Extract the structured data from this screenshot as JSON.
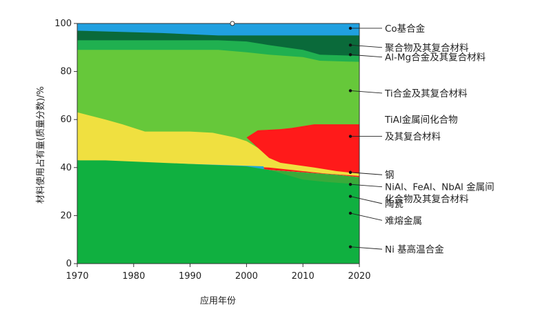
{
  "chart_data": {
    "type": "area",
    "xlabel": "应用年份",
    "ylabel": "材料使用占有量(质量分数)/%",
    "xlim": [
      1970,
      2020
    ],
    "ylim": [
      0,
      100
    ],
    "x_ticks": [
      1970,
      1980,
      1990,
      2000,
      2010,
      2020
    ],
    "y_ticks": [
      0,
      20,
      40,
      60,
      80,
      100
    ],
    "series": [
      {
        "name": "Ni 基高温合金",
        "color": "#10b040",
        "points": [
          [
            1970,
            43
          ],
          [
            1975,
            43
          ],
          [
            1980,
            42.5
          ],
          [
            1985,
            42
          ],
          [
            1990,
            41.5
          ],
          [
            1995,
            41
          ],
          [
            2000,
            40.5
          ],
          [
            2004,
            39
          ],
          [
            2007,
            37
          ],
          [
            2010,
            35
          ],
          [
            2014,
            34
          ],
          [
            2020,
            33
          ]
        ]
      },
      {
        "name": "难熔金属",
        "color": "#20a8d8",
        "points": [
          [
            1970,
            43
          ],
          [
            2003,
            40.5
          ],
          [
            2004,
            31
          ],
          [
            2012,
            21
          ],
          [
            2016,
            20
          ],
          [
            2020,
            19
          ]
        ]
      },
      {
        "name": "陶瓷",
        "color": "#30c040",
        "points": [
          [
            1970,
            43
          ],
          [
            2000,
            40.5
          ],
          [
            2004,
            37
          ],
          [
            2010,
            34
          ],
          [
            2016,
            33
          ],
          [
            2020,
            32.5
          ]
        ]
      },
      {
        "name": "NiAl、FeAl、NbAl 金属间化合物及其复合材料",
        "color": "#3aaa3a",
        "points": [
          [
            1970,
            43
          ],
          [
            2000,
            40.5
          ],
          [
            2004,
            39
          ],
          [
            2010,
            38
          ],
          [
            2016,
            37
          ],
          [
            2020,
            36
          ]
        ]
      },
      {
        "name": "钢",
        "color": "#ffffff",
        "points": [
          [
            1970,
            43
          ],
          [
            2000,
            40.5
          ],
          [
            2004,
            39
          ],
          [
            2010,
            38
          ],
          [
            2016,
            37
          ],
          [
            2020,
            36
          ]
        ]
      },
      {
        "name": "TiAl金属间化合物及其复合材料",
        "color": "#ff1a1a",
        "points": [
          [
            1970,
            43
          ],
          [
            2000,
            40.5
          ],
          [
            2004,
            40
          ],
          [
            2010,
            38.5
          ],
          [
            2014,
            37.5
          ],
          [
            2020,
            36.5
          ]
        ]
      },
      {
        "name": "yellow",
        "color": "#f0e040",
        "points": [
          [
            1970,
            63
          ],
          [
            1975,
            60
          ],
          [
            1978,
            58
          ],
          [
            1982,
            55
          ],
          [
            1986,
            55
          ],
          [
            1990,
            55
          ],
          [
            1994,
            54.5
          ],
          [
            1998,
            52.5
          ],
          [
            2000,
            51
          ],
          [
            2005,
            44
          ],
          [
            2010,
            41
          ],
          [
            2014,
            39.5
          ],
          [
            2020,
            37.5
          ]
        ]
      },
      {
        "name": "Ti合金及其复合材料",
        "color": "#66c83a",
        "points": [
          [
            1970,
            89
          ],
          [
            1995,
            89
          ],
          [
            2000,
            88
          ],
          [
            2004,
            87
          ],
          [
            2010,
            86
          ],
          [
            2013,
            84.5
          ],
          [
            2020,
            84
          ]
        ]
      },
      {
        "name": "Al-Mg合金及其复合材料",
        "color": "#20b050",
        "points": [
          [
            1970,
            93
          ],
          [
            1995,
            93
          ],
          [
            2000,
            92.5
          ],
          [
            2004,
            91
          ],
          [
            2010,
            89
          ],
          [
            2013,
            87
          ],
          [
            2020,
            86.5
          ]
        ]
      },
      {
        "name": "聚合物及其复合材料",
        "color": "#0a6a3a",
        "points": [
          [
            1970,
            97
          ],
          [
            1985,
            96
          ],
          [
            1995,
            95
          ],
          [
            2020,
            95
          ]
        ]
      },
      {
        "name": "Co基合金",
        "color": "#20a0e0",
        "points": [
          [
            1970,
            100
          ],
          [
            2020,
            100
          ]
        ]
      }
    ],
    "red_region": [
      [
        2000,
        52.5
      ],
      [
        2002,
        55.5
      ],
      [
        2006,
        56
      ],
      [
        2008,
        56.5
      ],
      [
        2012,
        58
      ],
      [
        2020,
        58
      ],
      [
        2020,
        37.5
      ],
      [
        2016,
        38.5
      ],
      [
        2012,
        40
      ],
      [
        2006,
        42
      ],
      [
        2004,
        44
      ],
      [
        2000,
        52.5
      ]
    ],
    "annotations": [
      {
        "text": "Co基合金",
        "y": 98
      },
      {
        "text": "聚合物及其复合材料",
        "y": 90
      },
      {
        "text": "Al-Mg合金及其复合材料",
        "y": 86
      },
      {
        "text": "Ti合金及其复合材料",
        "y": 71
      },
      {
        "text": "TiAl金属间化合物",
        "y": 60
      },
      {
        "text": "及其复合材料",
        "y": 53
      },
      {
        "text": "钢",
        "y": 37
      },
      {
        "text": "NiAl、FeAl、NbAl 金属间",
        "y": 32
      },
      {
        "text": "化合物及其复合材料",
        "y": 27
      },
      {
        "text": "陶瓷",
        "y": 25
      },
      {
        "text": "难熔金属",
        "y": 18
      },
      {
        "text": "Ni 基高温合金",
        "y": 6
      }
    ]
  }
}
